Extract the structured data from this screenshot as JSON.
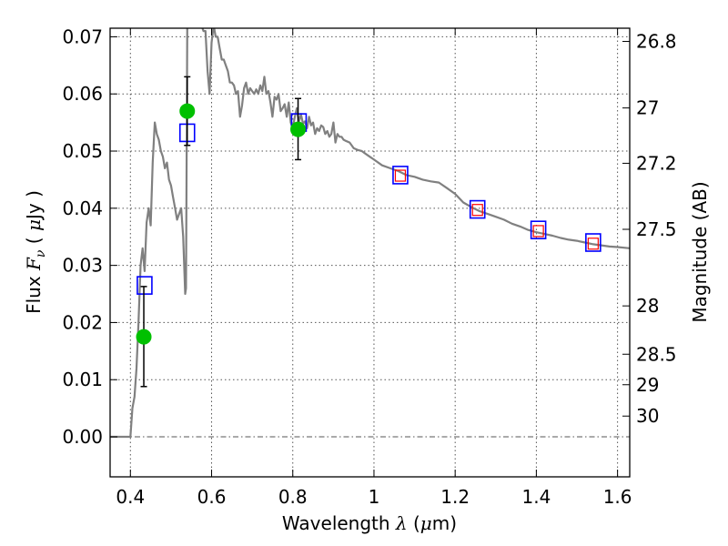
{
  "chart_data": {
    "type": "scatter",
    "xlabel": {
      "pre": "Wavelength ",
      "symbol": "λ",
      "unit_open": " (",
      "mu": "μ",
      "unit_rest": "m)"
    },
    "ylabel": {
      "pre": "Flux ",
      "F": "F",
      "nu": "ν",
      "open": " ( ",
      "mu": "μ",
      "rest": "Jy )"
    },
    "y2label": "Magnitude (AB)",
    "xlim": [
      0.35,
      1.63
    ],
    "ylim": [
      -0.007,
      0.0715
    ],
    "xticks": [
      0.4,
      0.6,
      0.8,
      1.0,
      1.2,
      1.4,
      1.6
    ],
    "xtick_labels": [
      "0.4",
      "0.6",
      "0.8",
      "1",
      "1.2",
      "1.4",
      "1.6"
    ],
    "yticks": [
      0.0,
      0.01,
      0.02,
      0.03,
      0.04,
      0.05,
      0.06,
      0.07
    ],
    "ytick_labels": [
      "0.00",
      "0.01",
      "0.02",
      "0.03",
      "0.04",
      "0.05",
      "0.06",
      "0.07"
    ],
    "mag_ticks": [
      26.8,
      27.0,
      27.2,
      27.5,
      28.0,
      28.5,
      29.0,
      30.0
    ],
    "mag_tick_labels": [
      "26.8",
      "27",
      "27.2",
      "27.5",
      "28",
      "28.5",
      "29",
      "30"
    ],
    "grid": true,
    "zero_line": true,
    "series": [
      {
        "name": "model_spectrum",
        "style": "line",
        "color": "#808080",
        "x": [
          0.35,
          0.4,
          0.405,
          0.41,
          0.415,
          0.42,
          0.425,
          0.43,
          0.435,
          0.44,
          0.445,
          0.45,
          0.455,
          0.46,
          0.465,
          0.47,
          0.475,
          0.48,
          0.485,
          0.49,
          0.495,
          0.5,
          0.505,
          0.51,
          0.515,
          0.52,
          0.525,
          0.53,
          0.535,
          0.537,
          0.54,
          0.545,
          0.55,
          0.555,
          0.56,
          0.565,
          0.57,
          0.575,
          0.58,
          0.585,
          0.59,
          0.595,
          0.6,
          0.605,
          0.61,
          0.615,
          0.62,
          0.625,
          0.63,
          0.635,
          0.64,
          0.645,
          0.65,
          0.655,
          0.66,
          0.665,
          0.67,
          0.675,
          0.68,
          0.685,
          0.69,
          0.695,
          0.7,
          0.705,
          0.71,
          0.715,
          0.72,
          0.725,
          0.73,
          0.735,
          0.74,
          0.745,
          0.75,
          0.755,
          0.76,
          0.765,
          0.77,
          0.775,
          0.78,
          0.785,
          0.79,
          0.795,
          0.8,
          0.805,
          0.81,
          0.815,
          0.82,
          0.825,
          0.83,
          0.835,
          0.84,
          0.845,
          0.85,
          0.855,
          0.86,
          0.865,
          0.87,
          0.875,
          0.88,
          0.885,
          0.89,
          0.895,
          0.9,
          0.905,
          0.91,
          0.915,
          0.92,
          0.925,
          0.93,
          0.94,
          0.95,
          0.96,
          0.97,
          0.98,
          0.99,
          1.0,
          1.02,
          1.04,
          1.06,
          1.08,
          1.1,
          1.12,
          1.14,
          1.16,
          1.18,
          1.2,
          1.22,
          1.24,
          1.26,
          1.28,
          1.3,
          1.32,
          1.34,
          1.36,
          1.38,
          1.4,
          1.42,
          1.44,
          1.46,
          1.48,
          1.5,
          1.52,
          1.54,
          1.56,
          1.58,
          1.6,
          1.63
        ],
        "y": [
          0.0,
          0.0,
          0.005,
          0.007,
          0.012,
          0.02,
          0.03,
          0.033,
          0.029,
          0.0375,
          0.04,
          0.037,
          0.048,
          0.055,
          0.053,
          0.052,
          0.05,
          0.049,
          0.047,
          0.048,
          0.045,
          0.044,
          0.042,
          0.04,
          0.038,
          0.039,
          0.04,
          0.035,
          0.025,
          0.026,
          0.072,
          0.072,
          0.072,
          0.072,
          0.072,
          0.072,
          0.072,
          0.072,
          0.071,
          0.071,
          0.064,
          0.06,
          0.069,
          0.072,
          0.07,
          0.07,
          0.068,
          0.066,
          0.066,
          0.065,
          0.064,
          0.062,
          0.062,
          0.0615,
          0.06,
          0.0605,
          0.056,
          0.058,
          0.061,
          0.062,
          0.06,
          0.061,
          0.0605,
          0.06,
          0.0608,
          0.06,
          0.0615,
          0.0605,
          0.063,
          0.06,
          0.0605,
          0.0585,
          0.056,
          0.0595,
          0.059,
          0.06,
          0.057,
          0.0575,
          0.0582,
          0.056,
          0.0585,
          0.055,
          0.054,
          0.056,
          0.0575,
          0.055,
          0.0565,
          0.0548,
          0.0552,
          0.054,
          0.056,
          0.0545,
          0.055,
          0.053,
          0.054,
          0.0535,
          0.0545,
          0.0542,
          0.053,
          0.0535,
          0.0525,
          0.053,
          0.055,
          0.0515,
          0.053,
          0.0525,
          0.0525,
          0.052,
          0.0518,
          0.0515,
          0.0505,
          0.0502,
          0.05,
          0.0495,
          0.049,
          0.0485,
          0.0475,
          0.047,
          0.0465,
          0.0458,
          0.0455,
          0.045,
          0.0447,
          0.0445,
          0.0435,
          0.0425,
          0.041,
          0.0402,
          0.0395,
          0.039,
          0.0385,
          0.038,
          0.0373,
          0.0368,
          0.0362,
          0.0358,
          0.0355,
          0.0352,
          0.0348,
          0.0345,
          0.0343,
          0.034,
          0.0337,
          0.0335,
          0.0333,
          0.0332,
          0.033
        ]
      },
      {
        "name": "model_photometry",
        "style": "open-square",
        "color": "#0000ff",
        "x": [
          0.435,
          0.54,
          0.815,
          1.065,
          1.255,
          1.405,
          1.54
        ],
        "y": [
          0.0265,
          0.0532,
          0.055,
          0.0458,
          0.0398,
          0.0362,
          0.034
        ]
      },
      {
        "name": "observed_photometry",
        "style": "filled-circle",
        "color": "#00c000",
        "x": [
          0.433,
          0.54,
          0.813
        ],
        "y": [
          0.0175,
          0.057,
          0.0538
        ],
        "err_low": [
          0.0088,
          0.051,
          0.0485
        ],
        "err_high": [
          0.0263,
          0.063,
          0.0592
        ]
      },
      {
        "name": "red_markers",
        "style": "small-open-square",
        "color": "#ff0000",
        "x": [
          1.065,
          1.255,
          1.405,
          1.54
        ],
        "y": [
          0.0457,
          0.0397,
          0.036,
          0.0338
        ]
      }
    ]
  }
}
